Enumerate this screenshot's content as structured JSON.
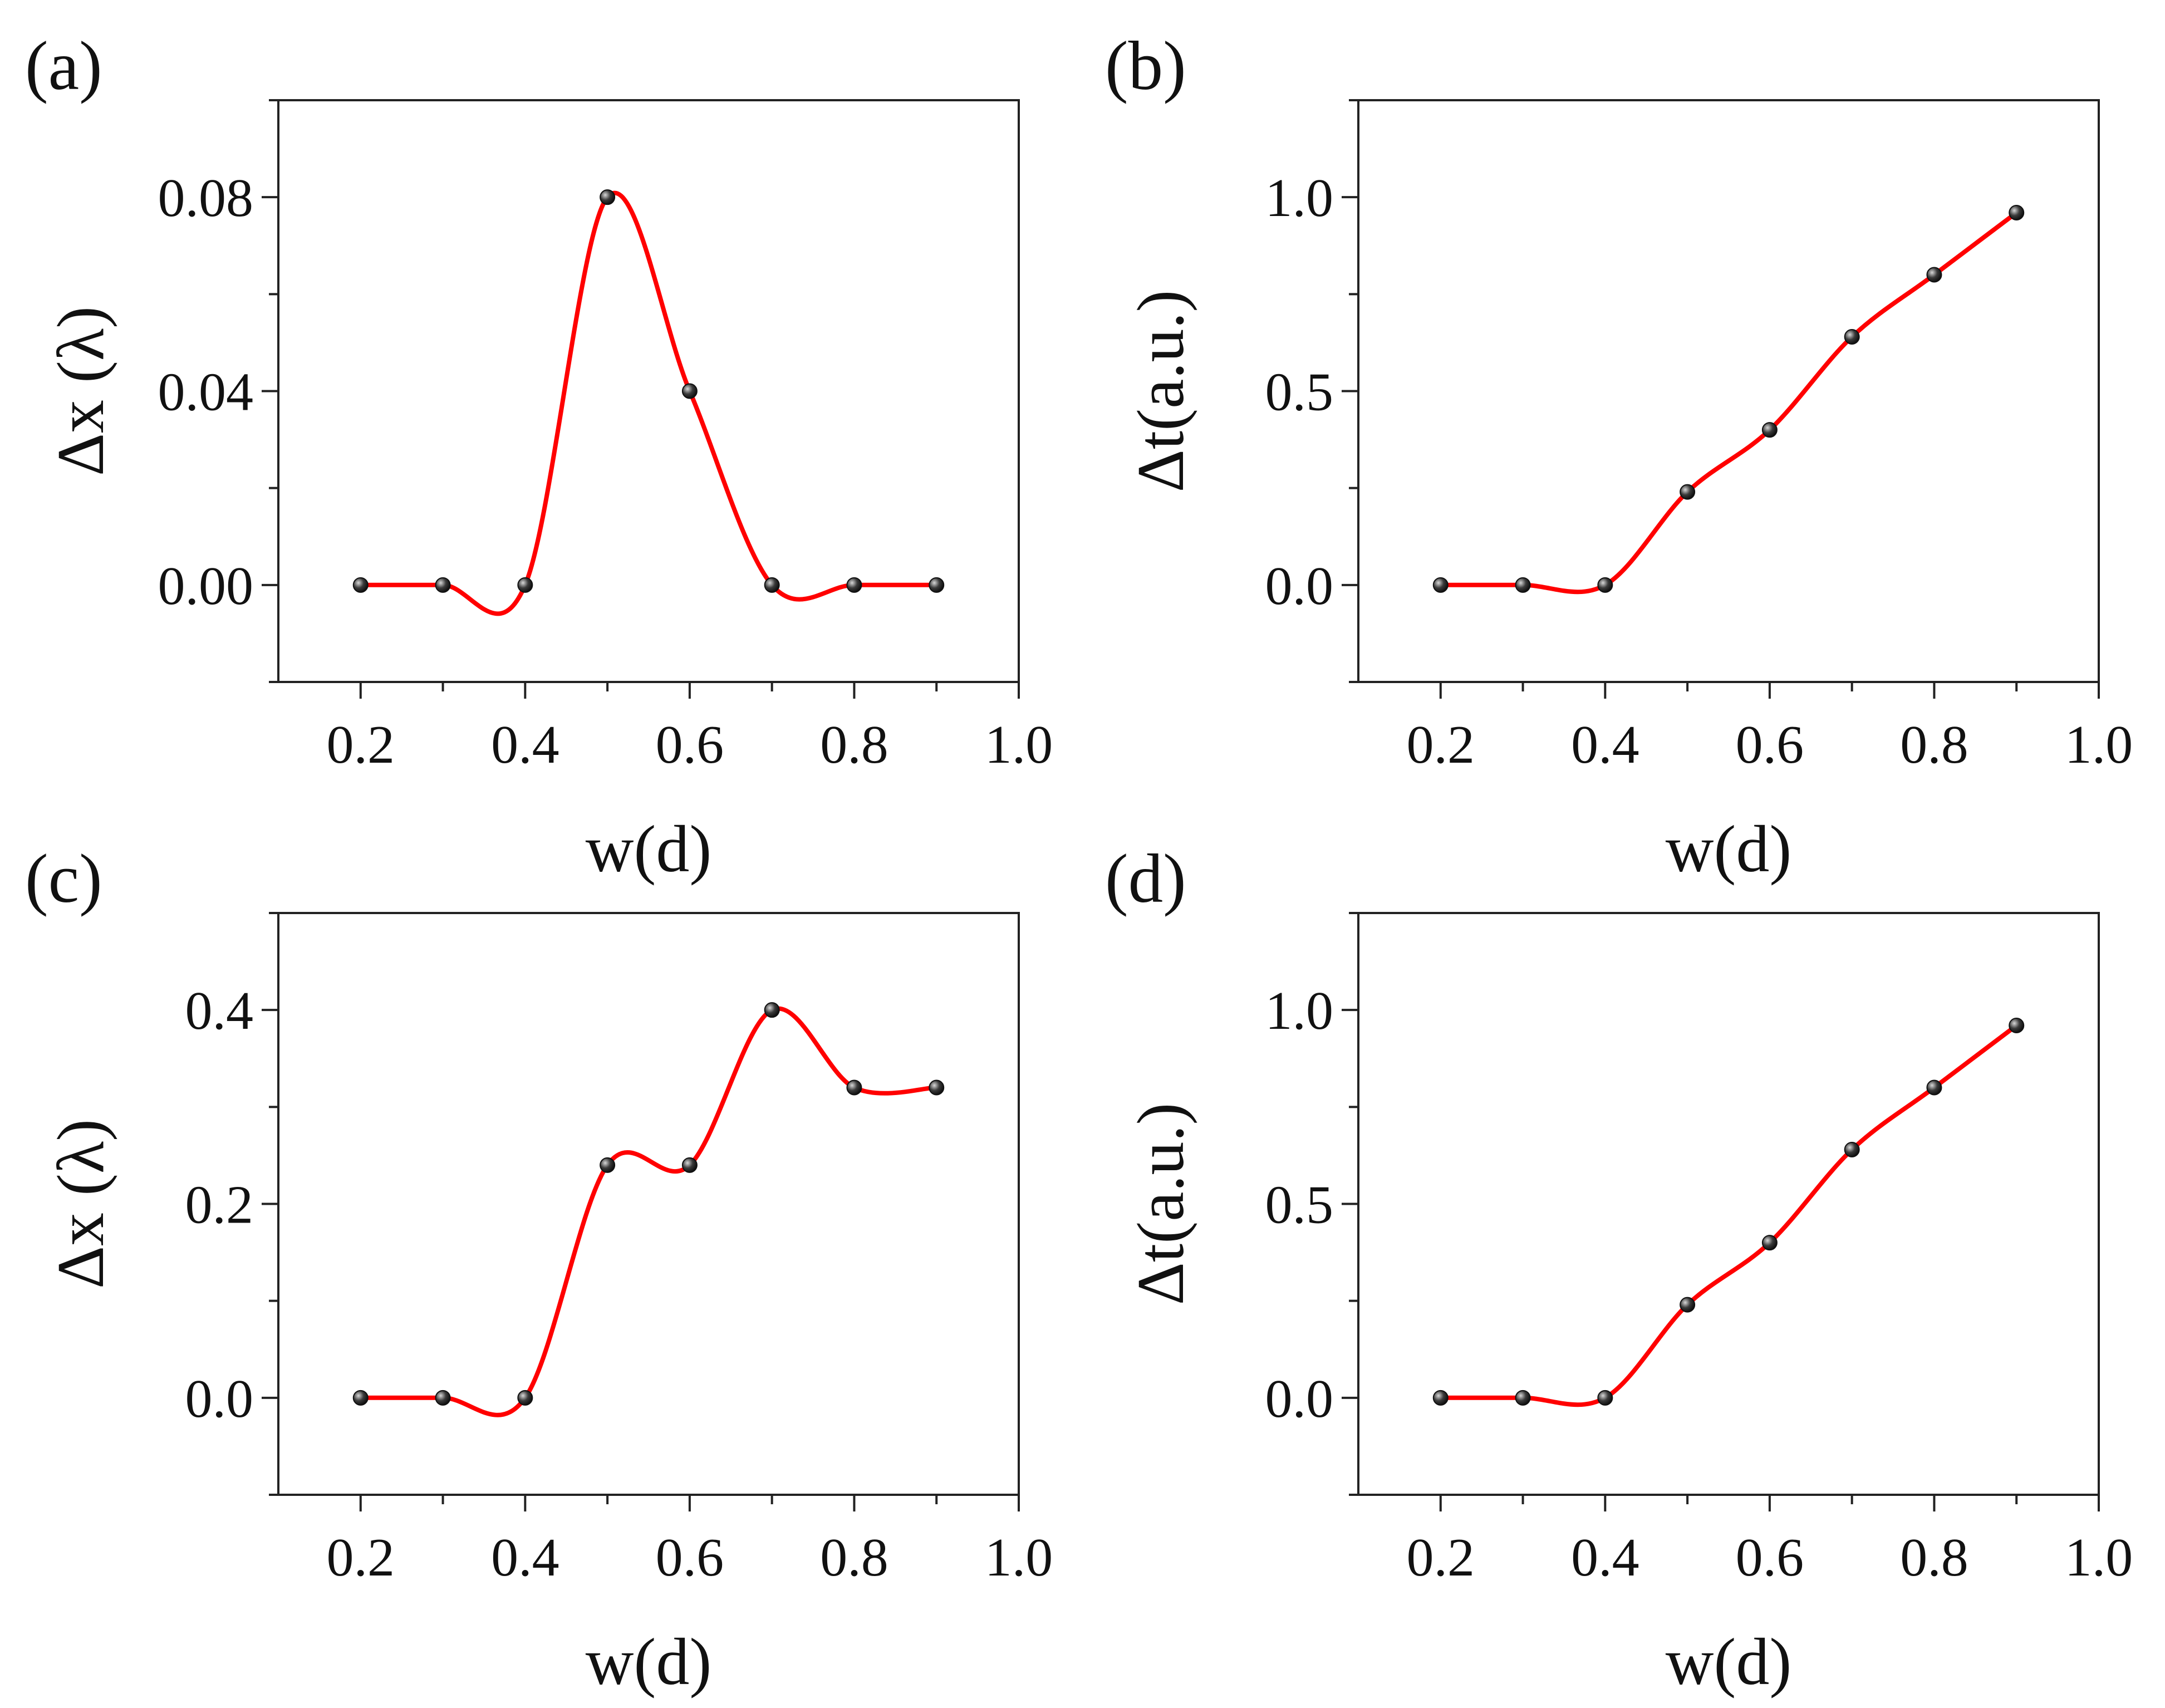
{
  "colors": {
    "curve": "#ff0000",
    "marker": "#3a3a3a",
    "axis": "#222222",
    "background": "#ffffff"
  },
  "chart_data": [
    {
      "panel": "(a)",
      "type": "line",
      "xlabel": "w(d)",
      "ylabel": "Δx (λ)",
      "xlim": [
        0.1,
        1.0
      ],
      "ylim": [
        -0.02,
        0.1
      ],
      "xticks": [
        "0.2",
        "0.4",
        "0.6",
        "0.8",
        "1.0"
      ],
      "yticks": [
        "0.00",
        "0.04",
        "0.08"
      ],
      "series": [
        {
          "name": "Δx",
          "x": [
            0.2,
            0.3,
            0.4,
            0.5,
            0.6,
            0.7,
            0.8,
            0.9
          ],
          "values": [
            0.0,
            0.0,
            0.0,
            0.08,
            0.04,
            0.0,
            0.0,
            0.0
          ]
        }
      ]
    },
    {
      "panel": "(b)",
      "type": "line",
      "xlabel": "w(d)",
      "ylabel": "Δt(a.u.)",
      "xlim": [
        0.1,
        1.0
      ],
      "ylim": [
        -0.25,
        1.25
      ],
      "xticks": [
        "0.2",
        "0.4",
        "0.6",
        "0.8",
        "1.0"
      ],
      "yticks": [
        "0.0",
        "0.5",
        "1.0"
      ],
      "series": [
        {
          "name": "Δt",
          "x": [
            0.2,
            0.3,
            0.4,
            0.5,
            0.6,
            0.7,
            0.8,
            0.9
          ],
          "values": [
            0.0,
            0.0,
            0.0,
            0.24,
            0.4,
            0.64,
            0.8,
            0.96
          ]
        }
      ]
    },
    {
      "panel": "(c)",
      "type": "line",
      "xlabel": "w(d)",
      "ylabel": "Δx (λ)",
      "xlim": [
        0.1,
        1.0
      ],
      "ylim": [
        -0.1,
        0.5
      ],
      "xticks": [
        "0.2",
        "0.4",
        "0.6",
        "0.8",
        "1.0"
      ],
      "yticks": [
        "0.0",
        "0.2",
        "0.4"
      ],
      "series": [
        {
          "name": "Δx",
          "x": [
            0.2,
            0.3,
            0.4,
            0.5,
            0.6,
            0.7,
            0.8,
            0.9
          ],
          "values": [
            0.0,
            0.0,
            0.0,
            0.24,
            0.24,
            0.4,
            0.32,
            0.32
          ]
        }
      ]
    },
    {
      "panel": "(d)",
      "type": "line",
      "xlabel": "w(d)",
      "ylabel": "Δt(a.u.)",
      "xlim": [
        0.1,
        1.0
      ],
      "ylim": [
        -0.25,
        1.25
      ],
      "xticks": [
        "0.2",
        "0.4",
        "0.6",
        "0.8",
        "1.0"
      ],
      "yticks": [
        "0.0",
        "0.5",
        "1.0"
      ],
      "series": [
        {
          "name": "Δt",
          "x": [
            0.2,
            0.3,
            0.4,
            0.5,
            0.6,
            0.7,
            0.8,
            0.9
          ],
          "values": [
            0.0,
            0.0,
            0.0,
            0.24,
            0.4,
            0.64,
            0.8,
            0.96
          ]
        }
      ]
    }
  ]
}
